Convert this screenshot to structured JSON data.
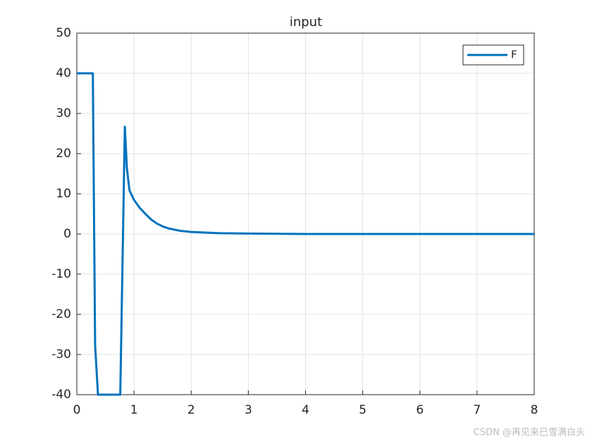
{
  "chart_data": {
    "type": "line",
    "title": "input",
    "x": [
      0,
      0.28,
      0.32,
      0.37,
      0.76,
      0.84,
      0.875,
      0.92,
      1.0,
      1.1,
      1.2,
      1.3,
      1.4,
      1.5,
      1.6,
      1.8,
      2.0,
      2.5,
      3.0,
      4.0,
      5.0,
      6.0,
      7.0,
      8.0
    ],
    "series": [
      {
        "name": "F",
        "color": "#0072bd",
        "values": [
          40,
          40,
          -27.7,
          -40,
          -40,
          26.7,
          16.5,
          10.9,
          8.5,
          6.5,
          5,
          3.6,
          2.6,
          1.9,
          1.4,
          0.8,
          0.5,
          0.2,
          0.1,
          0,
          0,
          0,
          0,
          0
        ]
      }
    ],
    "xlim": [
      0,
      8
    ],
    "xticks": [
      0,
      1,
      2,
      3,
      4,
      5,
      6,
      7,
      8
    ],
    "ylim": [
      -40,
      50
    ],
    "yticks": [
      -40,
      -30,
      -20,
      -10,
      0,
      10,
      20,
      30,
      40,
      50
    ],
    "grid": true,
    "legend": "top-right",
    "watermark": "CSDN @再见来已雪满白头"
  }
}
